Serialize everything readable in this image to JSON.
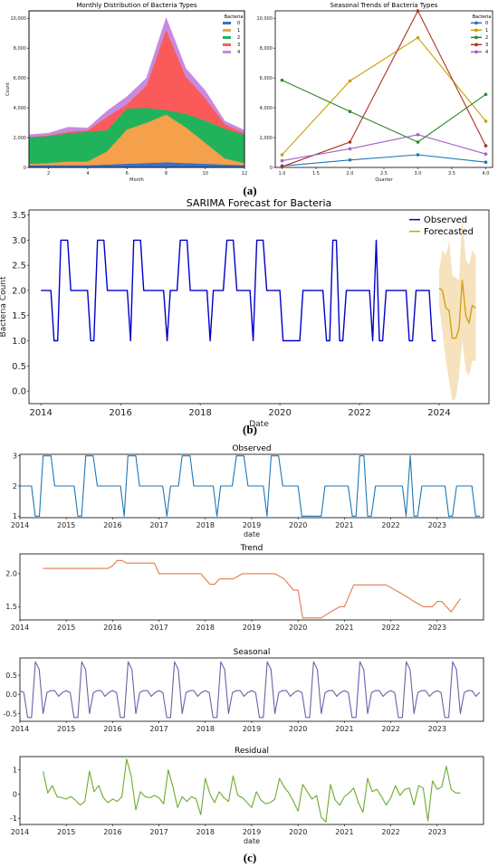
{
  "captions": {
    "a": "(a)",
    "b": "(b)",
    "c": "(c)"
  },
  "chart_data": [
    {
      "type": "area",
      "title": "Monthly Distribution of Bacteria Types",
      "xlabel": "Month",
      "ylabel": "Count",
      "xlim": [
        1,
        12
      ],
      "ylim": [
        0,
        10500
      ],
      "xticks": [
        2,
        4,
        6,
        8,
        10,
        12
      ],
      "yticks": [
        0,
        2000,
        4000,
        6000,
        8000,
        10000
      ],
      "ytick_labels": [
        "0",
        "2,000",
        "4,000",
        "6,000",
        "8,000",
        "10,000"
      ],
      "legend_title": "Bacteria",
      "legend_position": "top-right",
      "x": [
        1,
        2,
        3,
        4,
        5,
        6,
        7,
        8,
        9,
        10,
        11,
        12
      ],
      "series": [
        {
          "name": "0",
          "color": "#3b6fc4",
          "values": [
            150,
            150,
            150,
            150,
            200,
            250,
            300,
            350,
            300,
            250,
            200,
            150
          ]
        },
        {
          "name": "1",
          "color": "#f5a04a",
          "values": [
            100,
            150,
            250,
            250,
            900,
            2300,
            2700,
            3200,
            2400,
            1400,
            400,
            150
          ]
        },
        {
          "name": "2",
          "color": "#21b35c",
          "values": [
            1800,
            1800,
            1900,
            2000,
            1400,
            1400,
            1000,
            300,
            900,
            1500,
            2000,
            1900
          ]
        },
        {
          "name": "3",
          "color": "#fa5a5a",
          "values": [
            0,
            50,
            100,
            100,
            900,
            300,
            1500,
            5400,
            2500,
            1500,
            300,
            100
          ]
        },
        {
          "name": "4",
          "color": "#c88ae0",
          "values": [
            150,
            150,
            300,
            150,
            400,
            500,
            500,
            800,
            550,
            500,
            200,
            200
          ]
        }
      ]
    },
    {
      "type": "line",
      "title": "Seasonal Trends of Bacteria Types",
      "xlabel": "Quarter",
      "ylabel": "",
      "xlim": [
        0.9,
        4.1
      ],
      "ylim": [
        0,
        10500
      ],
      "xticks": [
        1.0,
        1.5,
        2.0,
        2.5,
        3.0,
        3.5,
        4.0
      ],
      "xtick_labels": [
        "1.0",
        "1.5",
        "2.0",
        "2.5",
        "3.0",
        "3.5",
        "4.0"
      ],
      "yticks": [
        0,
        2000,
        4000,
        6000,
        8000,
        10000
      ],
      "ytick_labels": [
        "0",
        "2,000",
        "4,000",
        "6,000",
        "8,000",
        "10,000"
      ],
      "legend_title": "Bacteria",
      "legend_position": "top-right",
      "x": [
        1,
        2,
        3,
        4
      ],
      "series": [
        {
          "name": "0",
          "color": "#1f77b4",
          "values": [
            100,
            500,
            850,
            350
          ]
        },
        {
          "name": "1",
          "color": "#c8a000",
          "values": [
            850,
            5800,
            8700,
            3100
          ]
        },
        {
          "name": "2",
          "color": "#2a8a2a",
          "values": [
            5850,
            3750,
            1700,
            4900
          ]
        },
        {
          "name": "3",
          "color": "#b03020",
          "values": [
            50,
            1700,
            10500,
            1450
          ]
        },
        {
          "name": "4",
          "color": "#a060c8",
          "values": [
            450,
            1250,
            2200,
            900
          ]
        }
      ]
    },
    {
      "type": "line",
      "title": "SARIMA Forecast for Bacteria",
      "xlabel": "Date",
      "ylabel": "Bacteria Count",
      "xlim": [
        2013.7,
        2025.25
      ],
      "ylim": [
        -0.25,
        3.6
      ],
      "xticks": [
        2014,
        2016,
        2018,
        2020,
        2022,
        2024
      ],
      "yticks": [
        0.0,
        0.5,
        1.0,
        1.5,
        2.0,
        2.5,
        3.0,
        3.5
      ],
      "ytick_labels": [
        "0.0",
        "0.5",
        "1.0",
        "1.5",
        "2.0",
        "2.5",
        "3.0",
        "3.5"
      ],
      "legend_position": "top-right",
      "observed": {
        "name": "Observed",
        "color": "#0000cc",
        "x": [
          2014,
          2014.08,
          2014.17,
          2014.25,
          2014.33,
          2014.42,
          2014.5,
          2014.58,
          2014.67,
          2014.75,
          2014.83,
          2014.92,
          2015,
          2015.08,
          2015.17,
          2015.25,
          2015.33,
          2015.42,
          2015.5,
          2015.58,
          2015.67,
          2015.75,
          2015.83,
          2015.92,
          2016,
          2016.08,
          2016.17,
          2016.25,
          2016.33,
          2016.42,
          2016.5,
          2016.58,
          2016.67,
          2016.75,
          2016.83,
          2016.92,
          2017,
          2017.08,
          2017.17,
          2017.25,
          2017.33,
          2017.42,
          2017.5,
          2017.58,
          2017.67,
          2017.75,
          2017.83,
          2017.92,
          2018,
          2018.08,
          2018.17,
          2018.25,
          2018.33,
          2018.42,
          2018.5,
          2018.58,
          2018.67,
          2018.75,
          2018.83,
          2018.92,
          2019,
          2019.08,
          2019.17,
          2019.25,
          2019.33,
          2019.42,
          2019.5,
          2019.58,
          2019.67,
          2019.75,
          2019.83,
          2019.92,
          2020,
          2020.08,
          2020.17,
          2020.25,
          2020.33,
          2020.42,
          2020.5,
          2020.58,
          2020.67,
          2020.75,
          2020.83,
          2020.92,
          2021,
          2021.08,
          2021.17,
          2021.25,
          2021.33,
          2021.42,
          2021.5,
          2021.58,
          2021.67,
          2021.75,
          2021.83,
          2021.92,
          2022,
          2022.08,
          2022.17,
          2022.25,
          2022.33,
          2022.42,
          2022.5,
          2022.58,
          2022.67,
          2022.75,
          2022.83,
          2022.92,
          2023,
          2023.08,
          2023.17,
          2023.25,
          2023.33,
          2023.42,
          2023.5,
          2023.58,
          2023.67,
          2023.75,
          2023.83,
          2023.92
        ],
        "y": [
          2,
          2,
          2,
          2,
          1,
          1,
          3,
          3,
          3,
          2,
          2,
          2,
          2,
          2,
          2,
          1,
          1,
          3,
          3,
          3,
          2,
          2,
          2,
          2,
          2,
          2,
          2,
          1,
          3,
          3,
          3,
          2,
          2,
          2,
          2,
          2,
          2,
          2,
          1,
          2,
          2,
          2,
          3,
          3,
          3,
          2,
          2,
          2,
          2,
          2,
          2,
          1,
          2,
          2,
          2,
          2,
          3,
          3,
          3,
          2,
          2,
          2,
          2,
          2,
          1,
          3,
          3,
          3,
          2,
          2,
          2,
          2,
          2,
          1,
          1,
          1,
          1,
          1,
          1,
          2,
          2,
          2,
          2,
          2,
          2,
          2,
          1,
          1,
          3,
          3,
          1,
          1,
          2,
          2,
          2,
          2,
          2,
          2,
          2,
          2,
          1,
          3,
          1,
          1,
          2,
          2,
          2,
          2,
          2,
          2,
          2,
          1,
          1,
          2,
          2,
          2,
          2,
          2,
          1,
          1
        ]
      },
      "forecast": {
        "name": "Forecasted",
        "color": "#d4a017",
        "band_color": "#f5deb3",
        "x": [
          2024,
          2024.08,
          2024.17,
          2024.25,
          2024.33,
          2024.42,
          2024.5,
          2024.58,
          2024.67,
          2024.75,
          2024.83,
          2024.92
        ],
        "y": [
          2.05,
          2.0,
          1.65,
          1.6,
          1.05,
          1.05,
          1.25,
          2.2,
          1.5,
          1.35,
          1.7,
          1.65
        ],
        "lower": [
          1.7,
          1.2,
          0.6,
          0.2,
          -0.2,
          -0.15,
          0.3,
          1.0,
          0.4,
          0.3,
          0.6,
          0.6
        ],
        "upper": [
          2.4,
          2.8,
          2.7,
          3.0,
          2.3,
          2.25,
          2.2,
          3.45,
          2.6,
          2.5,
          2.8,
          2.7
        ]
      }
    },
    {
      "type": "line",
      "title": "Observed",
      "xlabel": "date",
      "color": "#1f77b4",
      "xlim": [
        2014,
        2024
      ],
      "ylim": [
        0.95,
        3.05
      ],
      "xticks": [
        2014,
        2015,
        2016,
        2017,
        2018,
        2019,
        2020,
        2021,
        2022,
        2023
      ],
      "yticks": [
        1,
        2,
        3
      ],
      "ytick_labels": [
        "1",
        "2",
        "3"
      ],
      "x": [
        2014,
        2014.08,
        2014.17,
        2014.25,
        2014.33,
        2014.42,
        2014.5,
        2014.58,
        2014.67,
        2014.75,
        2014.83,
        2014.92,
        2015,
        2015.08,
        2015.17,
        2015.25,
        2015.33,
        2015.42,
        2015.5,
        2015.58,
        2015.67,
        2015.75,
        2015.83,
        2015.92,
        2016,
        2016.08,
        2016.17,
        2016.25,
        2016.33,
        2016.42,
        2016.5,
        2016.58,
        2016.67,
        2016.75,
        2016.83,
        2016.92,
        2017,
        2017.08,
        2017.17,
        2017.25,
        2017.33,
        2017.42,
        2017.5,
        2017.58,
        2017.67,
        2017.75,
        2017.83,
        2017.92,
        2018,
        2018.08,
        2018.17,
        2018.25,
        2018.33,
        2018.42,
        2018.5,
        2018.58,
        2018.67,
        2018.75,
        2018.83,
        2018.92,
        2019,
        2019.08,
        2019.17,
        2019.25,
        2019.33,
        2019.42,
        2019.5,
        2019.58,
        2019.67,
        2019.75,
        2019.83,
        2019.92,
        2020,
        2020.08,
        2020.17,
        2020.25,
        2020.33,
        2020.42,
        2020.5,
        2020.58,
        2020.67,
        2020.75,
        2020.83,
        2020.92,
        2021,
        2021.08,
        2021.17,
        2021.25,
        2021.33,
        2021.42,
        2021.5,
        2021.58,
        2021.67,
        2021.75,
        2021.83,
        2021.92,
        2022,
        2022.08,
        2022.17,
        2022.25,
        2022.33,
        2022.42,
        2022.5,
        2022.58,
        2022.67,
        2022.75,
        2022.83,
        2022.92,
        2023,
        2023.08,
        2023.17,
        2023.25,
        2023.33,
        2023.42,
        2023.5,
        2023.58,
        2023.67,
        2023.75,
        2023.83,
        2023.92
      ],
      "y": [
        2,
        2,
        2,
        2,
        1,
        1,
        3,
        3,
        3,
        2,
        2,
        2,
        2,
        2,
        2,
        1,
        1,
        3,
        3,
        3,
        2,
        2,
        2,
        2,
        2,
        2,
        2,
        1,
        3,
        3,
        3,
        2,
        2,
        2,
        2,
        2,
        2,
        2,
        1,
        2,
        2,
        2,
        3,
        3,
        3,
        2,
        2,
        2,
        2,
        2,
        2,
        1,
        2,
        2,
        2,
        2,
        3,
        3,
        3,
        2,
        2,
        2,
        2,
        2,
        1,
        3,
        3,
        3,
        2,
        2,
        2,
        2,
        2,
        1,
        1,
        1,
        1,
        1,
        1,
        2,
        2,
        2,
        2,
        2,
        2,
        2,
        1,
        1,
        3,
        3,
        1,
        1,
        2,
        2,
        2,
        2,
        2,
        2,
        2,
        2,
        1,
        3,
        1,
        1,
        2,
        2,
        2,
        2,
        2,
        2,
        2,
        1,
        1,
        2,
        2,
        2,
        2,
        2,
        1,
        1
      ]
    },
    {
      "type": "line",
      "title": "Trend",
      "xlabel": "",
      "color": "#e07b4a",
      "xlim": [
        2014,
        2024
      ],
      "ylim": [
        1.3,
        2.3
      ],
      "xticks": [
        2014,
        2015,
        2016,
        2017,
        2018,
        2019,
        2020,
        2021,
        2022,
        2023
      ],
      "yticks": [
        1.5,
        2.0
      ],
      "ytick_labels": [
        "1.5",
        "2.0"
      ],
      "x": [
        2014.5,
        2015.0,
        2015.5,
        2015.9,
        2016.0,
        2016.1,
        2016.2,
        2016.3,
        2016.9,
        2017.0,
        2017.5,
        2017.9,
        2018.0,
        2018.1,
        2018.2,
        2018.3,
        2018.6,
        2018.8,
        2019.0,
        2019.5,
        2019.7,
        2019.9,
        2020.0,
        2020.1,
        2020.3,
        2020.5,
        2020.7,
        2020.9,
        2021.0,
        2021.2,
        2021.4,
        2021.6,
        2021.9,
        2022.3,
        2022.5,
        2022.7,
        2022.9,
        2023.0,
        2023.1,
        2023.3,
        2023.5
      ],
      "y": [
        2.08,
        2.08,
        2.08,
        2.08,
        2.12,
        2.2,
        2.2,
        2.16,
        2.16,
        2.0,
        2.0,
        2.0,
        1.92,
        1.84,
        1.84,
        1.92,
        1.92,
        2.0,
        2.0,
        2.0,
        1.92,
        1.75,
        1.75,
        1.33,
        1.33,
        1.33,
        1.42,
        1.5,
        1.5,
        1.83,
        1.83,
        1.83,
        1.83,
        1.67,
        1.58,
        1.5,
        1.5,
        1.58,
        1.58,
        1.42,
        1.62
      ]
    },
    {
      "type": "line",
      "title": "Seasonal",
      "xlabel": "",
      "color": "#6c5fa8",
      "xlim": [
        2014,
        2024
      ],
      "ylim": [
        -0.7,
        0.95
      ],
      "xticks": [
        2014,
        2015,
        2016,
        2017,
        2018,
        2019,
        2020,
        2021,
        2022,
        2023
      ],
      "yticks": [
        -0.5,
        0.0,
        0.5
      ],
      "ytick_labels": [
        "-0.5",
        "0.0",
        "0.5"
      ],
      "cycle_y": [
        0.1,
        0.05,
        -0.6,
        -0.6,
        0.85,
        0.65,
        -0.5,
        0.05,
        0.1,
        0.1,
        -0.05,
        0.05
      ]
    },
    {
      "type": "line",
      "title": "Residual",
      "xlabel": "date",
      "color": "#6bab2e",
      "xlim": [
        2014,
        2024
      ],
      "ylim": [
        -1.25,
        1.55
      ],
      "xticks": [
        2014,
        2015,
        2016,
        2017,
        2018,
        2019,
        2020,
        2021,
        2022,
        2023
      ],
      "yticks": [
        -1,
        0,
        1
      ],
      "ytick_labels": [
        "-1",
        "0",
        "1"
      ],
      "x": [
        2014.5,
        2014.6,
        2014.7,
        2014.8,
        2014.9,
        2015.0,
        2015.1,
        2015.2,
        2015.3,
        2015.4,
        2015.5,
        2015.6,
        2015.7,
        2015.8,
        2015.9,
        2016.0,
        2016.1,
        2016.2,
        2016.3,
        2016.4,
        2016.5,
        2016.6,
        2016.7,
        2016.8,
        2016.9,
        2017.0,
        2017.1,
        2017.2,
        2017.3,
        2017.4,
        2017.5,
        2017.6,
        2017.7,
        2017.8,
        2017.9,
        2018.0,
        2018.1,
        2018.2,
        2018.3,
        2018.4,
        2018.5,
        2018.6,
        2018.7,
        2018.8,
        2018.9,
        2019.0,
        2019.1,
        2019.2,
        2019.3,
        2019.4,
        2019.5,
        2019.6,
        2019.7,
        2019.8,
        2019.9,
        2020.0,
        2020.1,
        2020.2,
        2020.3,
        2020.4,
        2020.5,
        2020.6,
        2020.7,
        2020.8,
        2020.9,
        2021.0,
        2021.1,
        2021.2,
        2021.3,
        2021.4,
        2021.5,
        2021.6,
        2021.7,
        2021.8,
        2021.9,
        2022.0,
        2022.1,
        2022.2,
        2022.3,
        2022.4,
        2022.5,
        2022.6,
        2022.7,
        2022.8,
        2022.9,
        2023.0,
        2023.1,
        2023.2,
        2023.3,
        2023.4,
        2023.5
      ],
      "y": [
        0.95,
        0.05,
        0.35,
        -0.1,
        -0.15,
        -0.2,
        -0.1,
        -0.25,
        -0.45,
        -0.3,
        0.95,
        0.1,
        0.35,
        -0.15,
        -0.35,
        -0.2,
        -0.3,
        -0.1,
        1.45,
        0.75,
        -0.65,
        0.1,
        -0.1,
        -0.15,
        -0.05,
        -0.15,
        -0.4,
        1.0,
        0.3,
        -0.55,
        -0.1,
        -0.3,
        -0.1,
        -0.2,
        -0.85,
        0.65,
        0.0,
        -0.35,
        0.1,
        -0.15,
        -0.3,
        0.75,
        -0.05,
        -0.15,
        -0.35,
        -0.55,
        0.1,
        -0.25,
        -0.4,
        -0.35,
        -0.2,
        0.65,
        0.3,
        0.05,
        -0.3,
        -0.7,
        0.4,
        0.1,
        -0.2,
        -0.05,
        -0.95,
        -1.15,
        0.4,
        -0.25,
        -0.45,
        -0.1,
        0.05,
        0.25,
        -0.35,
        -0.75,
        0.65,
        0.1,
        0.2,
        -0.1,
        -0.45,
        -0.15,
        0.35,
        -0.05,
        0.2,
        0.25,
        -0.45,
        0.35,
        0.25,
        -1.1,
        0.55,
        0.2,
        0.3,
        1.15,
        0.2,
        0.05,
        0.05
      ]
    }
  ]
}
